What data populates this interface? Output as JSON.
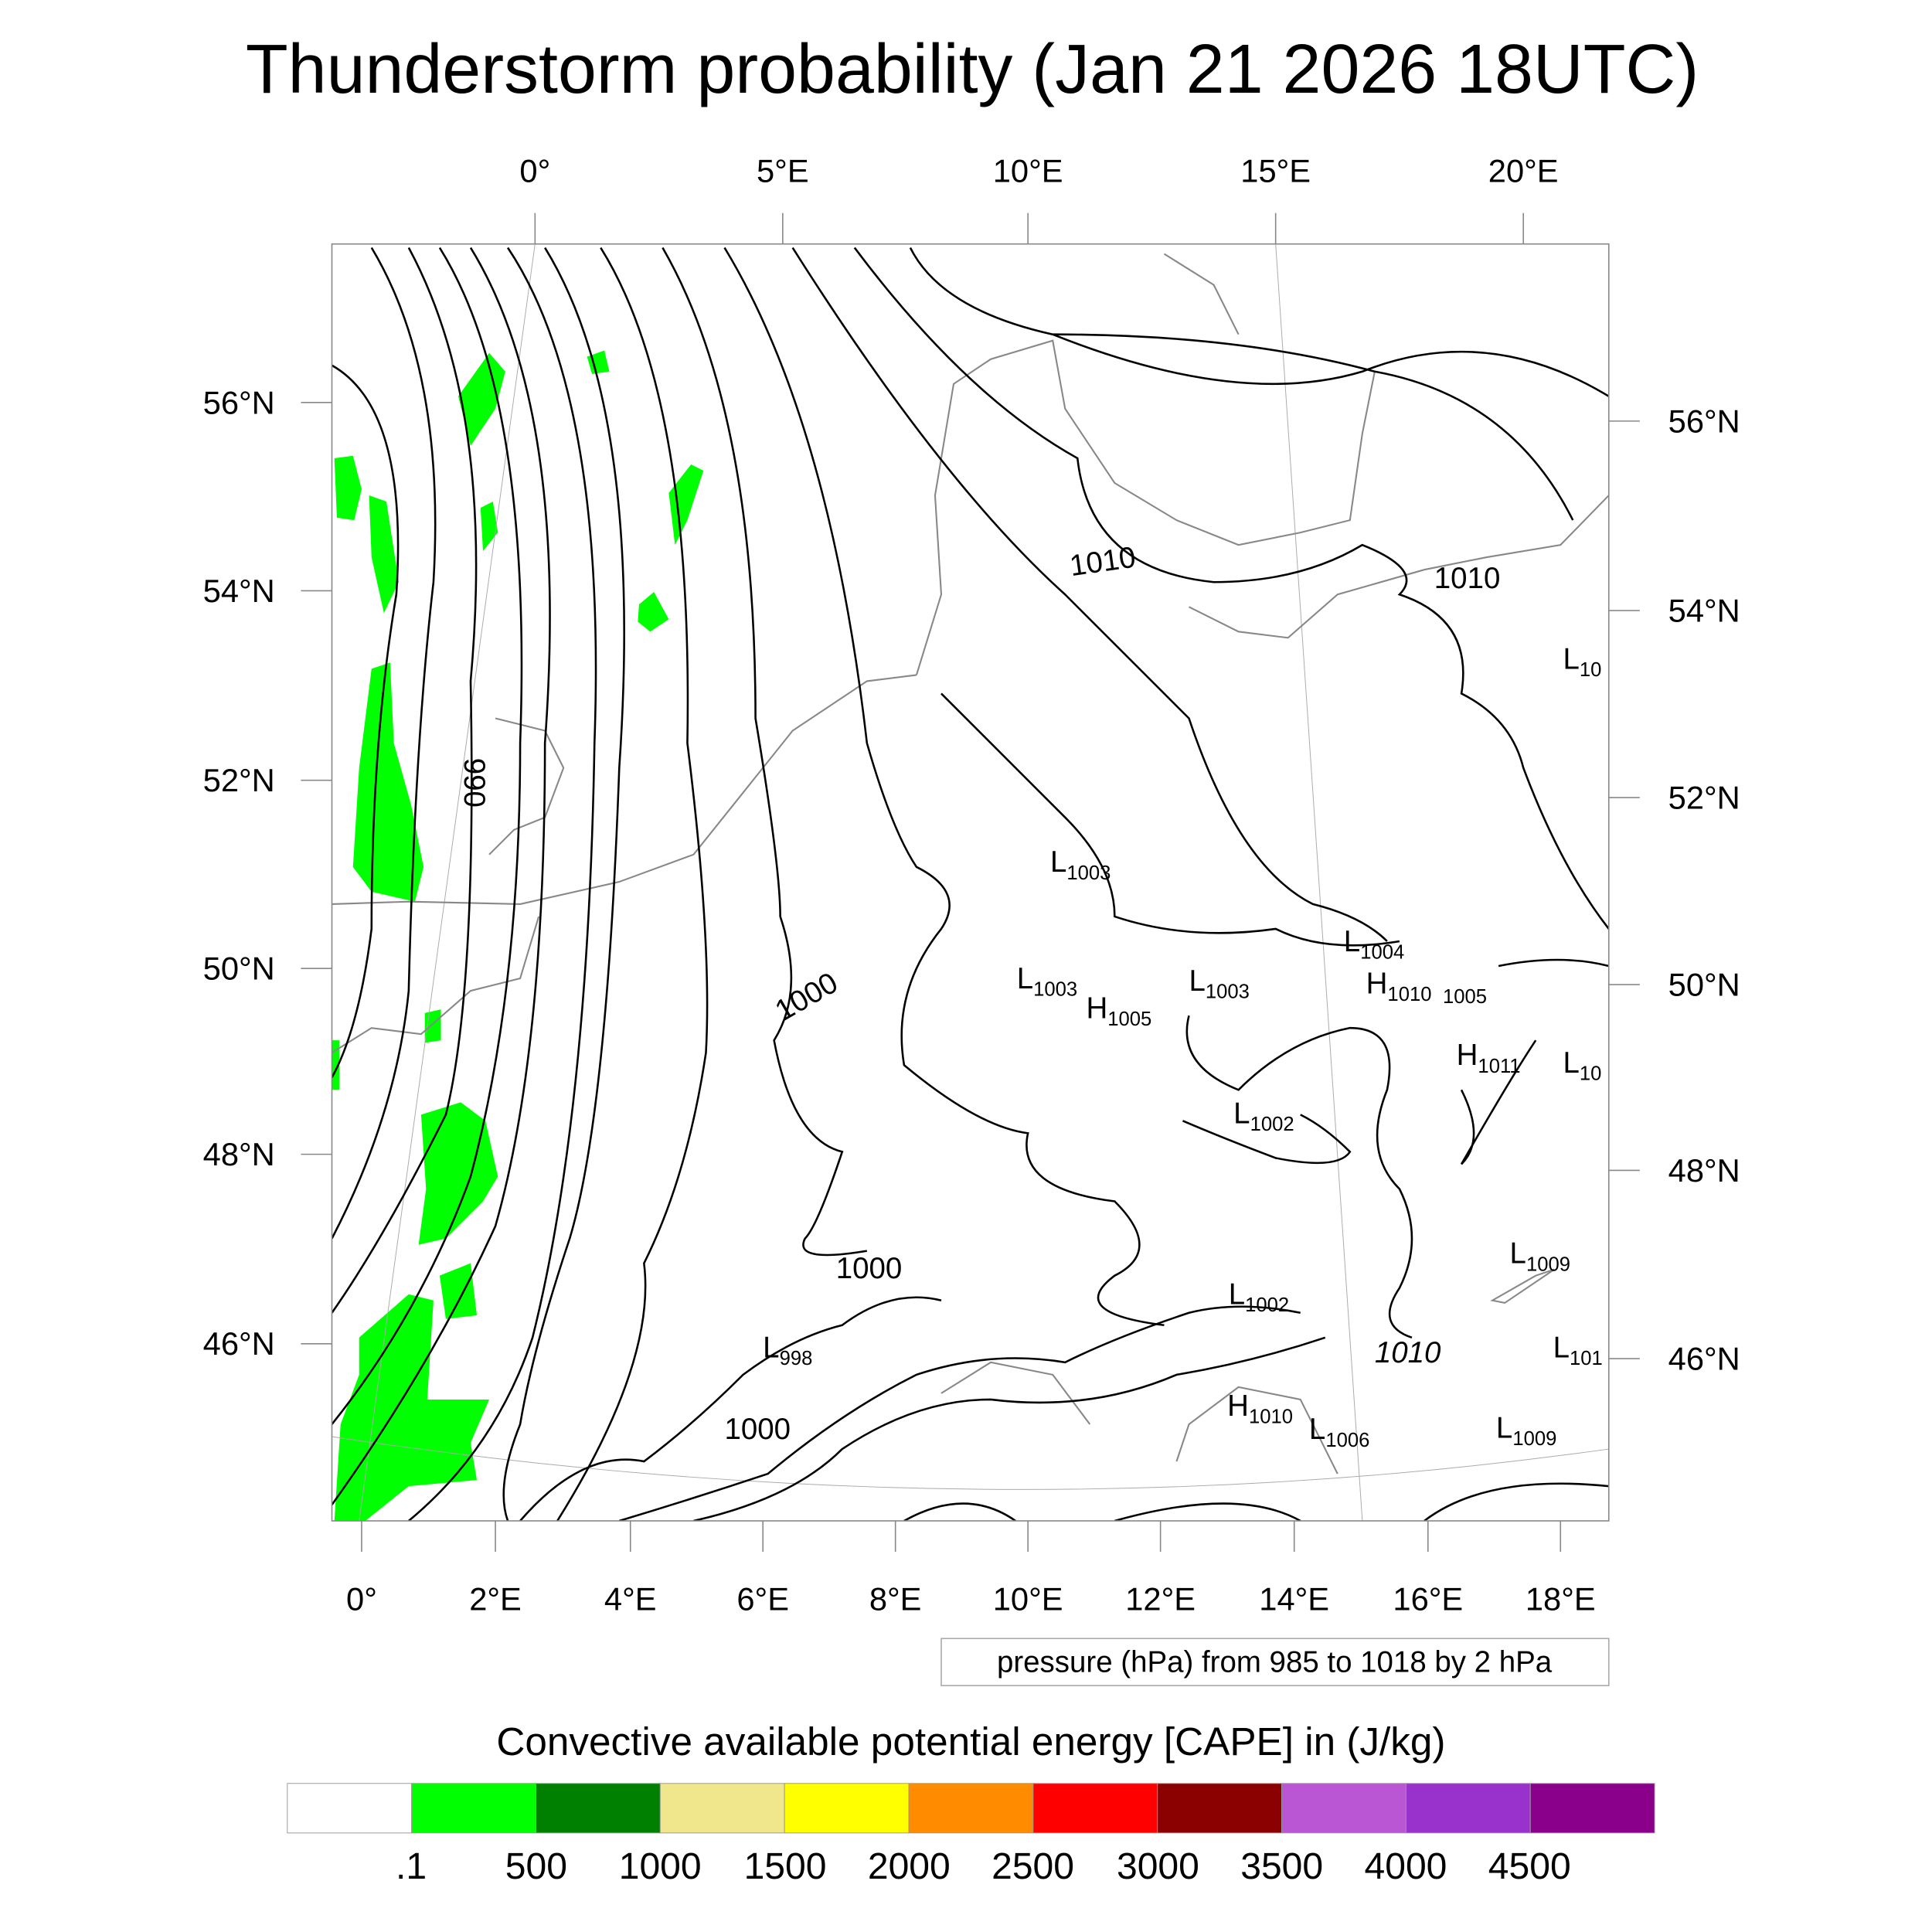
{
  "title": "Thunderstorm probability (Jan 21 2026 18UTC)",
  "top_lon_labels": [
    "0°",
    "5°E",
    "10°E",
    "15°E",
    "20°E"
  ],
  "left_lat_labels": [
    "56°N",
    "54°N",
    "52°N",
    "50°N",
    "48°N",
    "46°N"
  ],
  "right_lat_labels": [
    "56°N",
    "54°N",
    "52°N",
    "50°N",
    "48°N",
    "46°N"
  ],
  "bottom_lon_labels": [
    "0°",
    "2°E",
    "4°E",
    "6°E",
    "8°E",
    "10°E",
    "12°E",
    "14°E",
    "16°E",
    "18°E"
  ],
  "contour_labels": [
    "1010",
    "1010",
    "990",
    "1000",
    "1000",
    "1000",
    "1010"
  ],
  "pressure_centers": [
    {
      "type": "L",
      "value": "1003"
    },
    {
      "type": "L",
      "value": "1004"
    },
    {
      "type": "L",
      "value": "1003"
    },
    {
      "type": "H",
      "value": "1005"
    },
    {
      "type": "L",
      "value": "1003"
    },
    {
      "type": "H",
      "value": "1010"
    },
    {
      "type": "",
      "value": "1005"
    },
    {
      "type": "H",
      "value": "1011"
    },
    {
      "type": "L",
      "value": "10"
    },
    {
      "type": "L",
      "value": "10"
    },
    {
      "type": "L",
      "value": "1002"
    },
    {
      "type": "L",
      "value": "1009"
    },
    {
      "type": "L",
      "value": "1002"
    },
    {
      "type": "L",
      "value": "998"
    },
    {
      "type": "L",
      "value": "101"
    },
    {
      "type": "H",
      "value": "1010"
    },
    {
      "type": "L",
      "value": "1006"
    },
    {
      "type": "L",
      "value": "1009"
    }
  ],
  "info_box": "pressure (hPa) from 985 to 1018 by 2 hPa",
  "colorbar": {
    "title": "Convective available potential energy [CAPE] in (J/kg)",
    "colors": [
      "#ffffff",
      "#00ff00",
      "#008000",
      "#f0e68c",
      "#ffff00",
      "#ff8c00",
      "#ff0000",
      "#8b0000",
      "#ba55d3",
      "#9932cc",
      "#8b008b"
    ],
    "labels": [
      ".1",
      "500",
      "1000",
      "1500",
      "2000",
      "2500",
      "3000",
      "3500",
      "4000",
      "4500"
    ]
  }
}
